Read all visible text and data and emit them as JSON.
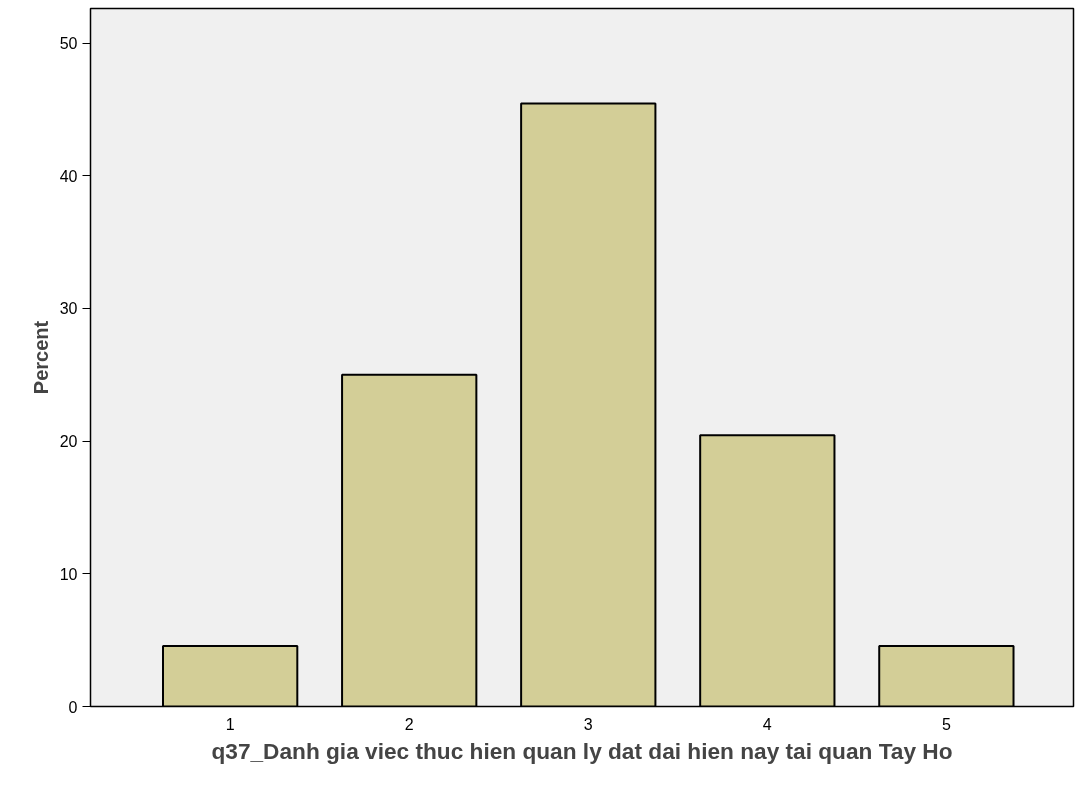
{
  "chart_data": {
    "type": "bar",
    "xlabel": "q37_Danh gia viec thuc hien quan ly dat dai hien nay tai quan Tay Ho",
    "ylabel": "Percent",
    "categories": [
      "1",
      "2",
      "3",
      "4",
      "5"
    ],
    "values": [
      4.55,
      25.0,
      45.45,
      20.45,
      4.55
    ],
    "color": "#d3ce97",
    "ylim": [
      0,
      52.6
    ],
    "yticks": [
      0,
      10,
      20,
      30,
      40,
      50
    ],
    "grid": false
  }
}
